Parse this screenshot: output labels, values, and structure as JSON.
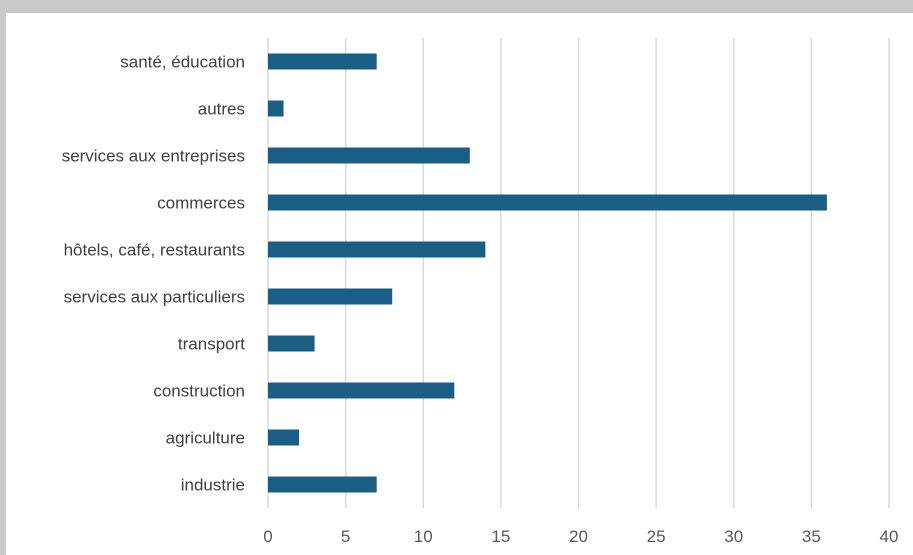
{
  "chart_data": {
    "type": "bar",
    "orientation": "horizontal",
    "categories": [
      "santé, éducation",
      "autres",
      "services aux entreprises",
      "commerces",
      "hôtels, café, restaurants",
      "services aux particuliers",
      "transport",
      "construction",
      "agriculture",
      "industrie"
    ],
    "values": [
      7,
      1,
      13,
      36,
      14,
      8,
      3,
      12,
      2,
      7
    ],
    "xlim": [
      0,
      40
    ],
    "xticks": [
      "0",
      "5",
      "10",
      "15",
      "20",
      "25",
      "30",
      "35",
      "40"
    ],
    "grid": "vertical",
    "legend": "none",
    "bar_color": "#1a5e85",
    "grid_color": "#d9d9d9"
  }
}
